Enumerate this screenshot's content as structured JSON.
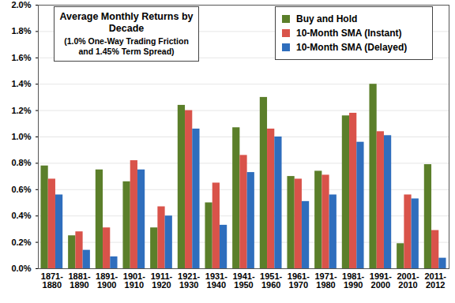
{
  "chart_data": {
    "type": "bar",
    "title": "Average Monthly Returns by Decade",
    "subtitle": "(1.0% One-Way Trading Friction and 1.45% Term Spread)",
    "categories": [
      "1871-1880",
      "1881-1890",
      "1891-1900",
      "1901-1910",
      "1911-1920",
      "1921-1930",
      "1931-1940",
      "1941-1950",
      "1951-1960",
      "1961-1970",
      "1971-1980",
      "1981-1990",
      "1991-2000",
      "2001-2010",
      "2011-2012"
    ],
    "series": [
      {
        "name": "Buy and Hold",
        "color": "#5b7f2a",
        "values": [
          0.78,
          0.25,
          0.75,
          0.66,
          0.31,
          1.24,
          0.5,
          1.07,
          1.3,
          0.7,
          0.74,
          1.16,
          1.4,
          0.19,
          0.79
        ]
      },
      {
        "name": "10-Month SMA (Instant)",
        "color": "#d9534a",
        "values": [
          0.68,
          0.28,
          0.31,
          0.82,
          0.47,
          1.2,
          0.65,
          0.86,
          1.06,
          0.68,
          0.71,
          1.18,
          1.04,
          0.56,
          0.29
        ]
      },
      {
        "name": "10-Month SMA (Delayed)",
        "color": "#2f6ebd",
        "values": [
          0.56,
          0.14,
          0.09,
          0.75,
          0.4,
          1.06,
          0.33,
          0.73,
          1.0,
          0.51,
          0.56,
          0.96,
          1.01,
          0.53,
          0.08
        ]
      }
    ],
    "ylim": [
      0,
      2
    ],
    "yticks": [
      {
        "value": 0,
        "label": "0.0%"
      },
      {
        "value": 0.2,
        "label": "0.2%"
      },
      {
        "value": 0.4,
        "label": "0.4%"
      },
      {
        "value": 0.6,
        "label": "0.6%"
      },
      {
        "value": 0.8,
        "label": "0.8%"
      },
      {
        "value": 1,
        "label": "1.0%"
      },
      {
        "value": 1.2,
        "label": "1.2%"
      },
      {
        "value": 1.4,
        "label": "1.4%"
      },
      {
        "value": 1.6,
        "label": "1.6%"
      },
      {
        "value": 1.8,
        "label": "1.8%"
      },
      {
        "value": 2,
        "label": "2.0%"
      }
    ],
    "grid": true,
    "legend": "top-right"
  }
}
